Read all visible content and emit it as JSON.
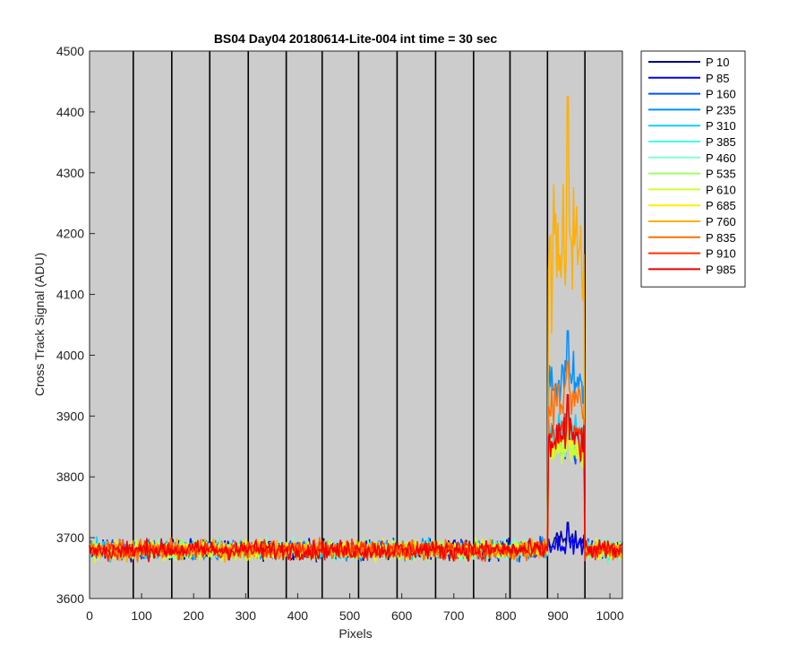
{
  "chart_data": {
    "type": "line",
    "title": "BS04 Day04 20180614-Lite-004 int time = 30 sec",
    "xlabel": "Pixels",
    "ylabel": "Cross Track Signal (ADU)",
    "xlim": [
      0,
      1024
    ],
    "ylim": [
      3600,
      4500
    ],
    "xticks": [
      0,
      100,
      200,
      300,
      400,
      500,
      600,
      700,
      800,
      900,
      1000
    ],
    "yticks": [
      3600,
      3700,
      3800,
      3900,
      4000,
      4100,
      4200,
      4300,
      4400,
      4500
    ],
    "grid": false,
    "background": "#cccccc",
    "legend_position": "outside top-right",
    "vertical_lines": [
      84,
      158,
      231,
      305,
      378,
      447,
      517,
      591,
      665,
      738,
      808,
      880,
      952
    ],
    "baseline": 3680,
    "baseline_noise": 14,
    "bump_range": [
      880,
      952
    ],
    "series": [
      {
        "name": "P 10",
        "color": "#00008f",
        "bump_mean": 3695,
        "bump_peak": 3725
      },
      {
        "name": "P 85",
        "color": "#0000ef",
        "bump_mean": 3690,
        "bump_peak": 3720
      },
      {
        "name": "P 160",
        "color": "#0050ff",
        "bump_mean": 3845,
        "bump_peak": 3890
      },
      {
        "name": "P 235",
        "color": "#0090ff",
        "bump_mean": 3950,
        "bump_peak": 4040
      },
      {
        "name": "P 310",
        "color": "#10cfff",
        "bump_mean": 3880,
        "bump_peak": 3930
      },
      {
        "name": "P 385",
        "color": "#40ffef",
        "bump_mean": 3860,
        "bump_peak": 3900
      },
      {
        "name": "P 460",
        "color": "#80ffcf",
        "bump_mean": 3850,
        "bump_peak": 3890
      },
      {
        "name": "P 535",
        "color": "#9fff60",
        "bump_mean": 3840,
        "bump_peak": 3880
      },
      {
        "name": "P 610",
        "color": "#cfff30",
        "bump_mean": 3840,
        "bump_peak": 3880
      },
      {
        "name": "P 685",
        "color": "#ffef00",
        "bump_mean": 3850,
        "bump_peak": 3890
      },
      {
        "name": "P 760",
        "color": "#ffb000",
        "bump_mean": 4180,
        "bump_peak": 4425
      },
      {
        "name": "P 835",
        "color": "#ff7000",
        "bump_mean": 3920,
        "bump_peak": 3990
      },
      {
        "name": "P 910",
        "color": "#ff3000",
        "bump_mean": 3870,
        "bump_peak": 3920
      },
      {
        "name": "P 985",
        "color": "#ef0000",
        "bump_mean": 3860,
        "bump_peak": 3935
      }
    ]
  }
}
